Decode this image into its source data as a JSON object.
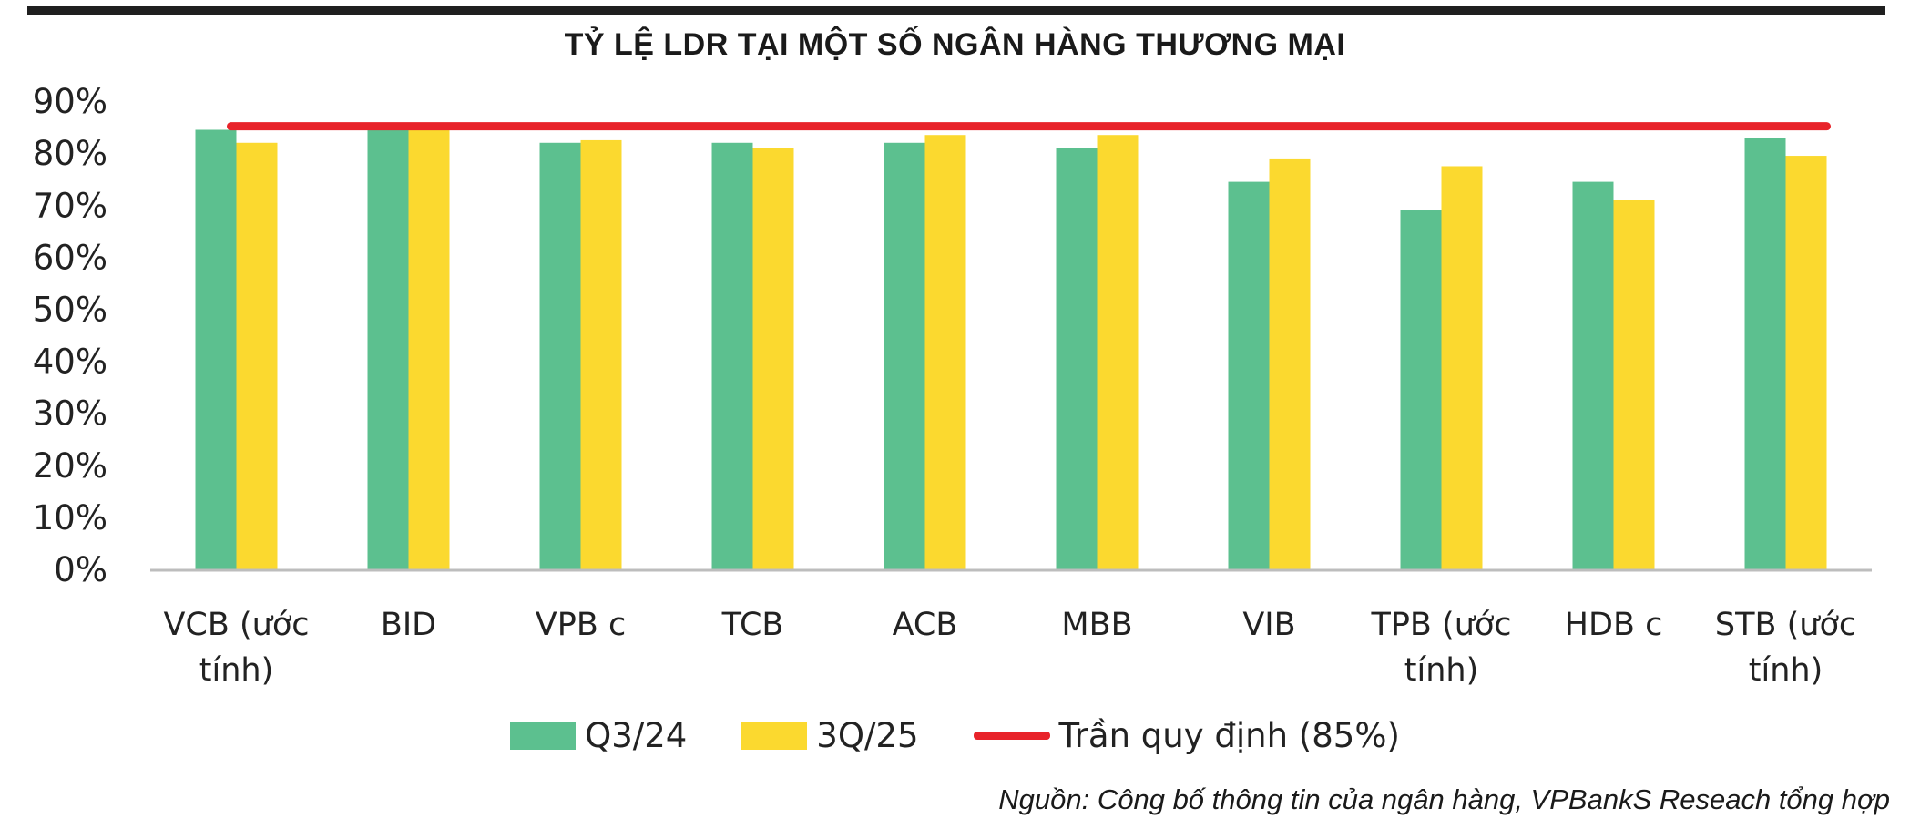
{
  "title": "TỶ LỆ LDR TẠI MỘT SỐ NGÂN HÀNG THƯƠNG MẠI",
  "source": "Nguồn: Công bố thông tin của ngân hàng, VPBankS Reseach tổng hợp",
  "legend": {
    "series1": "Q3/24",
    "series2": "3Q/25",
    "ceiling": "Trần quy định (85%)"
  },
  "colors": {
    "series1": "#5cc08f",
    "series2": "#fbd92f",
    "ceiling": "#e8232a",
    "axis": "#bdbdbd"
  },
  "chart_data": {
    "type": "bar",
    "title": "TỶ LỆ LDR TẠI MỘT SỐ NGÂN HÀNG THƯƠNG MẠI",
    "xlabel": "",
    "ylabel": "",
    "ylim": [
      0,
      90
    ],
    "yticks": [
      "0%",
      "10%",
      "20%",
      "30%",
      "40%",
      "50%",
      "60%",
      "70%",
      "80%",
      "90%"
    ],
    "grid": false,
    "legend_position": "bottom",
    "categories": [
      [
        "VCB (ước",
        "tính)"
      ],
      [
        "BID"
      ],
      [
        "VPB c"
      ],
      [
        "TCB"
      ],
      [
        "ACB"
      ],
      [
        "MBB"
      ],
      [
        "VIB"
      ],
      [
        "TPB (ước",
        "tính)"
      ],
      [
        "HDB c"
      ],
      [
        "STB (ước",
        "tính)"
      ]
    ],
    "series": [
      {
        "name": "Q3/24",
        "values": [
          84.5,
          84.5,
          82,
          82,
          82,
          81,
          74.5,
          69,
          74.5,
          83
        ]
      },
      {
        "name": "3Q/25",
        "values": [
          82,
          84.5,
          82.5,
          81,
          83.5,
          83.5,
          79,
          77.5,
          71,
          79.5
        ]
      }
    ],
    "reference_line": {
      "name": "Trần quy định (85%)",
      "value": 85
    }
  }
}
